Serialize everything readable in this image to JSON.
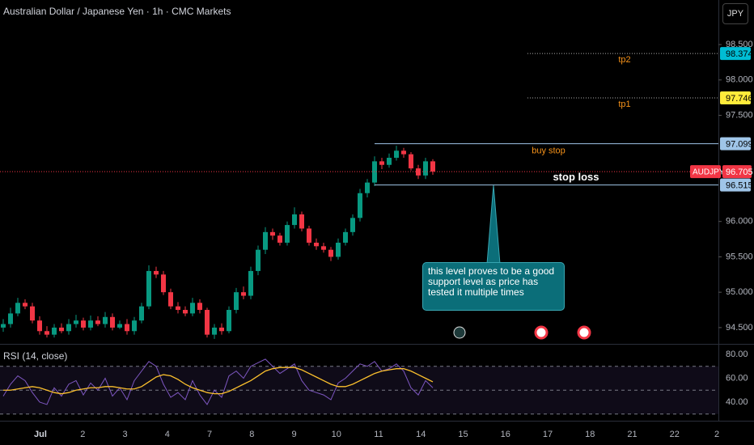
{
  "chart_data": {
    "type": "candlestick",
    "title": "Australian Dollar / Japanese Yen · 1h · CMC Markets",
    "currency": "JPY",
    "symbol": "AUDJPY",
    "up_color": "#089981",
    "down_color": "#f23645",
    "ylim": [
      94.27,
      99.13
    ],
    "yticks": [
      {
        "value": 98.5,
        "label": "98.500"
      },
      {
        "value": 98,
        "label": "98.000"
      },
      {
        "value": 97.5,
        "label": "97.500"
      },
      {
        "value": 96,
        "label": "96.000"
      },
      {
        "value": 95.5,
        "label": "95.500"
      },
      {
        "value": 95,
        "label": "95.000"
      },
      {
        "value": 94.5,
        "label": "94.500"
      }
    ],
    "categories": [
      "Jul",
      "2",
      "3",
      "4",
      "7",
      "8",
      "9",
      "10",
      "11",
      "14",
      "15",
      "16",
      "17",
      "18",
      "21",
      "22",
      "2"
    ],
    "open": [
      94.5,
      94.55,
      94.7,
      94.85,
      94.8,
      94.6,
      94.45,
      94.4,
      94.5,
      94.45,
      94.55,
      94.6,
      94.5,
      94.6,
      94.55,
      94.65,
      94.5,
      94.55,
      94.45,
      94.6,
      94.8,
      95.3,
      95.25,
      95.0,
      94.8,
      94.75,
      94.7,
      94.85,
      94.75,
      94.4,
      94.5,
      94.45,
      94.75,
      95.0,
      94.95,
      95.3,
      95.6,
      95.85,
      95.8,
      95.7,
      95.95,
      96.1,
      95.9,
      95.7,
      95.65,
      95.6,
      95.5,
      95.7,
      95.85,
      96.05,
      96.4,
      96.55,
      96.85,
      96.8,
      96.9,
      97.0,
      96.95,
      96.75,
      96.65,
      96.85
    ],
    "high": [
      94.62,
      94.78,
      94.92,
      94.9,
      94.85,
      94.66,
      94.52,
      94.55,
      94.56,
      94.62,
      94.68,
      94.64,
      94.67,
      94.66,
      94.72,
      94.7,
      94.6,
      94.62,
      94.65,
      94.85,
      95.38,
      95.36,
      95.3,
      95.05,
      94.86,
      94.8,
      94.92,
      94.9,
      94.78,
      94.55,
      94.56,
      94.8,
      95.06,
      95.08,
      95.36,
      95.66,
      95.92,
      95.9,
      95.84,
      96.0,
      96.2,
      96.14,
      95.94,
      95.76,
      95.7,
      95.64,
      95.76,
      95.9,
      96.1,
      96.46,
      96.6,
      96.92,
      96.9,
      96.96,
      97.07,
      97.04,
      96.98,
      96.8,
      96.9,
      96.88
    ],
    "low": [
      94.44,
      94.5,
      94.66,
      94.76,
      94.56,
      94.4,
      94.36,
      94.36,
      94.42,
      94.4,
      94.5,
      94.46,
      94.46,
      94.52,
      94.5,
      94.46,
      94.48,
      94.4,
      94.4,
      94.56,
      94.76,
      95.2,
      94.96,
      94.76,
      94.7,
      94.66,
      94.66,
      94.7,
      94.36,
      94.34,
      94.4,
      94.42,
      94.7,
      94.9,
      94.9,
      95.24,
      95.54,
      95.74,
      95.66,
      95.66,
      95.9,
      95.86,
      95.66,
      95.6,
      95.56,
      95.44,
      95.46,
      95.66,
      95.8,
      96.0,
      96.34,
      96.5,
      96.74,
      96.76,
      96.86,
      96.9,
      96.72,
      96.6,
      96.6,
      96.66
    ],
    "close": [
      94.55,
      94.7,
      94.85,
      94.8,
      94.6,
      94.45,
      94.4,
      94.5,
      94.45,
      94.55,
      94.6,
      94.5,
      94.6,
      94.55,
      94.65,
      94.5,
      94.55,
      94.45,
      94.6,
      94.8,
      95.3,
      95.25,
      95.0,
      94.8,
      94.75,
      94.7,
      94.85,
      94.75,
      94.4,
      94.5,
      94.45,
      94.75,
      95.0,
      94.95,
      95.3,
      95.6,
      95.85,
      95.8,
      95.7,
      95.95,
      96.1,
      95.9,
      95.7,
      95.65,
      95.6,
      95.5,
      95.7,
      95.85,
      96.05,
      96.4,
      96.55,
      96.85,
      96.8,
      96.9,
      97.0,
      96.95,
      96.75,
      96.65,
      96.85,
      96.705
    ],
    "last_price": 96.705,
    "levels": [
      {
        "value": 98.374,
        "name": "tp2",
        "color": "#00bcd4",
        "style": "dotted"
      },
      {
        "value": 97.746,
        "name": "tp1",
        "color": "#ffeb3b",
        "style": "dotted"
      },
      {
        "value": 97.099,
        "name": "buy stop",
        "color": "#9fc5e8",
        "style": "solid"
      },
      {
        "value": 96.515,
        "name": "stop loss",
        "color": "#9fc5e8",
        "style": "solid"
      }
    ],
    "annotation": "this level proves to be a good support level as price has tested it multiple times",
    "rsi": {
      "title": "RSI (14, close)",
      "ylim": [
        24.4,
        88.8
      ],
      "yticks": [
        {
          "value": 80,
          "label": "80.00"
        },
        {
          "value": 60,
          "label": "60.00"
        },
        {
          "value": 40,
          "label": "40.00"
        }
      ],
      "bands": [
        70,
        50,
        30
      ],
      "values": [
        45,
        55,
        62,
        58,
        48,
        40,
        38,
        52,
        45,
        55,
        58,
        46,
        56,
        50,
        60,
        45,
        52,
        42,
        58,
        66,
        74,
        70,
        55,
        44,
        48,
        42,
        58,
        46,
        38,
        50,
        44,
        62,
        66,
        60,
        70,
        73,
        76,
        70,
        64,
        68,
        72,
        58,
        50,
        48,
        46,
        42,
        56,
        60,
        66,
        72,
        70,
        74,
        66,
        68,
        72,
        66,
        52,
        46,
        58,
        52
      ],
      "ma": [
        50,
        50,
        51,
        52,
        53,
        52,
        50,
        48,
        47,
        48,
        50,
        51,
        52,
        52,
        53,
        53,
        52,
        51,
        51,
        53,
        57,
        61,
        63,
        62,
        59,
        55,
        52,
        50,
        48,
        47,
        47,
        49,
        52,
        55,
        58,
        62,
        66,
        68,
        69,
        69,
        69,
        67,
        64,
        61,
        58,
        55,
        53,
        53,
        55,
        58,
        61,
        64,
        66,
        67,
        68,
        68,
        66,
        63,
        60,
        57
      ]
    }
  }
}
